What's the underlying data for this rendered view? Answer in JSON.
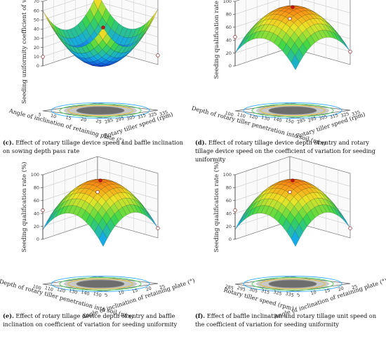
{
  "chart_data": [
    {
      "id": "c",
      "type": "surface3d",
      "zlabel": "Seeding uniformity coefficient of variation (%)",
      "zticks": [
        "0",
        "10",
        "20",
        "30",
        "40",
        "50",
        "60",
        "70"
      ],
      "zlim": [
        0,
        70
      ],
      "x_axis": {
        "label": "Rotary tiller speed (rpm)",
        "ticks": [
          "285",
          "295",
          "305",
          "315",
          "325",
          "335"
        ]
      },
      "y_axis": {
        "label": "Angle of inclination of retaining plate (°)",
        "ticks": [
          "5",
          "10",
          "15",
          "20",
          "25"
        ]
      },
      "shape": "bowl",
      "surface_range": [
        0,
        60
      ],
      "corner_values": [
        60,
        60,
        60,
        60
      ],
      "design_points": [
        60,
        60,
        10,
        10
      ],
      "caption_tag": "(c).",
      "caption_text": "Effect of rotary tillage device speed and baffle inclination on sowing depth pass rate"
    },
    {
      "id": "d",
      "type": "surface3d",
      "zlabel": "Seeding qualification rate (%)",
      "zticks": [
        "0",
        "20",
        "40",
        "60",
        "80",
        "100"
      ],
      "zlim": [
        0,
        100
      ],
      "x_axis": {
        "label": "Rotary tiller speed (rpm)",
        "ticks": [
          "285",
          "295",
          "305",
          "315",
          "325",
          "335"
        ]
      },
      "y_axis": {
        "label": "Depth of rotary tiller penetration into soil (mm)",
        "ticks": [
          "100",
          "110",
          "120",
          "130",
          "140",
          "150"
        ]
      },
      "shape": "dome",
      "surface_range": [
        20,
        90
      ],
      "corner_values": [
        45,
        45,
        45,
        20
      ],
      "design_points": [
        90,
        45,
        45,
        20
      ],
      "caption_tag": "(d).",
      "caption_text": "Effect of rotary tillage device depth of entry and rotary tillage device speed on the coefficient of variation for seeding uniformity"
    },
    {
      "id": "e",
      "type": "surface3d",
      "zlabel": "Seeding qualification rate (%)",
      "zticks": [
        "0",
        "20",
        "40",
        "60",
        "80",
        "100"
      ],
      "zlim": [
        0,
        100
      ],
      "x_axis": {
        "label": "Angle of inclination of retaining plate (°)",
        "ticks": [
          "5",
          "10",
          "15",
          "20",
          "25"
        ]
      },
      "y_axis": {
        "label": "Depth of rotary tiller penetration into soil (mm)",
        "ticks": [
          "100",
          "110",
          "120",
          "130",
          "140",
          "150"
        ]
      },
      "shape": "dome",
      "surface_range": [
        15,
        90
      ],
      "corner_values": [
        45,
        45,
        45,
        15
      ],
      "design_points": [
        90,
        45,
        45,
        15
      ],
      "caption_tag": "(e).",
      "caption_text": "Effect of rotary tillage device depth of entry and baffle inclination on coefficient of variation for seeding uniformity"
    },
    {
      "id": "f",
      "type": "surface3d",
      "zlabel": "Seeding qualification rate (%)",
      "zticks": [
        "0",
        "20",
        "40",
        "60",
        "80",
        "100"
      ],
      "zlim": [
        0,
        100
      ],
      "x_axis": {
        "label": "Angle of inclination of retaining plate (°)",
        "ticks": [
          "5",
          "10",
          "15",
          "20",
          "25"
        ]
      },
      "y_axis": {
        "label": "Rotary tiller speed (rpm)",
        "ticks": [
          "285",
          "295",
          "305",
          "315",
          "325",
          "335"
        ]
      },
      "shape": "dome",
      "surface_range": [
        15,
        90
      ],
      "corner_values": [
        45,
        45,
        45,
        15
      ],
      "design_points": [
        90,
        45,
        45,
        15
      ],
      "caption_tag": "(f).",
      "caption_text": "Effect of baffle inclination and rotary tillage unit speed on the coefficient of variation for seeding uniformity"
    }
  ]
}
